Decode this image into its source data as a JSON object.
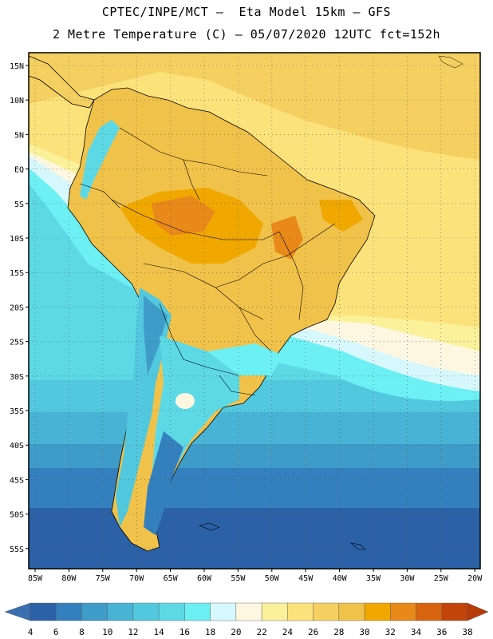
{
  "header": {
    "title_line1": "CPTEC/INPE/MCT –  Eta Model 15km – GFS",
    "title_line2": "2 Metre Temperature (C) – 05/07/2020 12UTC fct=152h"
  },
  "map": {
    "lat_labels": [
      "15N",
      "10N",
      "5N",
      "EQ",
      "5S",
      "10S",
      "15S",
      "20S",
      "25S",
      "30S",
      "35S",
      "40S",
      "45S",
      "50S",
      "55S"
    ],
    "lon_labels": [
      "85W",
      "80W",
      "75W",
      "70W",
      "65W",
      "60W",
      "55W",
      "50W",
      "45W",
      "40W",
      "35W",
      "30W",
      "25W",
      "20W"
    ]
  },
  "colorbar": {
    "labels": [
      "4",
      "6",
      "8",
      "10",
      "12",
      "14",
      "16",
      "18",
      "20",
      "22",
      "24",
      "26",
      "28",
      "30",
      "32",
      "34",
      "36",
      "38"
    ],
    "colors": [
      "#2b61a6",
      "#3480bf",
      "#3f9cc9",
      "#48b3d4",
      "#52c8de",
      "#5dd9e6",
      "#6cf0f4",
      "#d6f7fb",
      "#fdf7e2",
      "#fbf19a",
      "#fce27a",
      "#f5d060",
      "#f0c24a",
      "#f0a800",
      "#e8891a",
      "#d96410",
      "#c2440a"
    ],
    "low_color": "#3a6fb0",
    "high_color": "#b83a0a"
  }
}
